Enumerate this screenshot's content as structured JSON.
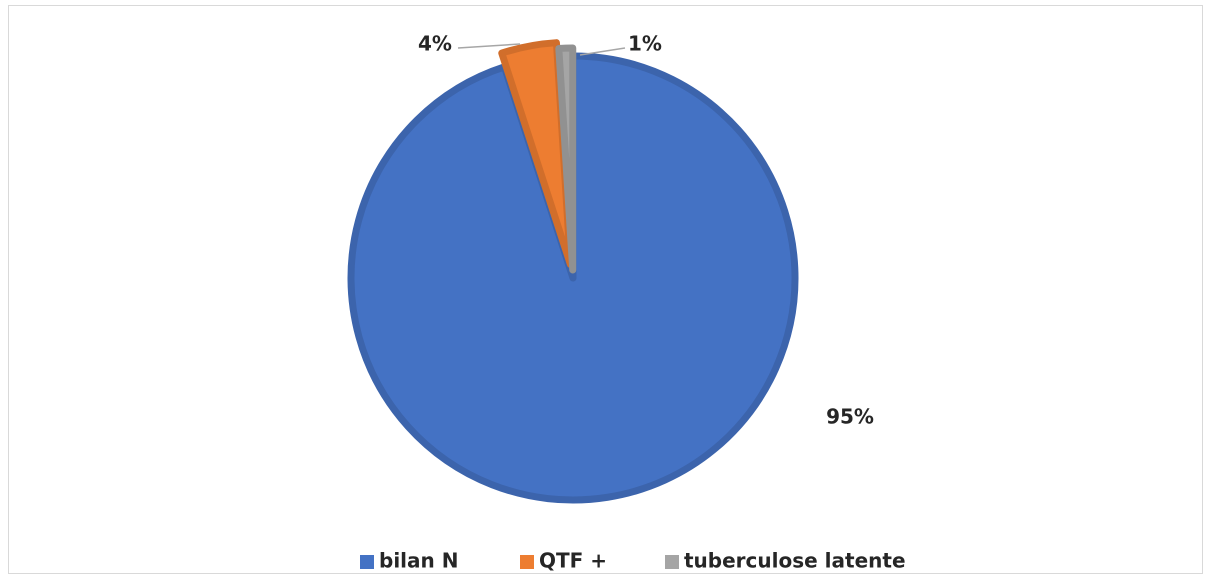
{
  "chart_data": {
    "type": "pie",
    "categories": [
      "bilan N",
      "QTF +",
      "tuberculose latente"
    ],
    "values": [
      95,
      4,
      1
    ],
    "value_labels": [
      "95%",
      "4%",
      "1%"
    ],
    "colors": [
      "#4472c4",
      "#ed7d31",
      "#a5a5a5"
    ],
    "legend": "bottom"
  }
}
